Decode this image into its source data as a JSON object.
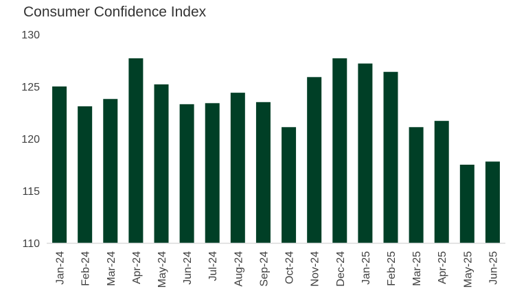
{
  "chart_data": {
    "type": "bar",
    "title": "Consumer Confidence Index",
    "xlabel": "",
    "ylabel": "",
    "categories": [
      "Jan-24",
      "Feb-24",
      "Mar-24",
      "Apr-24",
      "May-24",
      "Jun-24",
      "Jul-24",
      "Aug-24",
      "Sep-24",
      "Oct-24",
      "Nov-24",
      "Dec-24",
      "Jan-25",
      "Feb-25",
      "Mar-25",
      "Apr-25",
      "May-25",
      "Jun-25"
    ],
    "values": [
      125.0,
      123.1,
      123.8,
      127.7,
      125.2,
      123.3,
      123.4,
      124.4,
      123.5,
      121.1,
      125.9,
      127.7,
      127.2,
      126.4,
      121.1,
      121.7,
      117.5,
      117.8
    ],
    "ylim": [
      110,
      130
    ],
    "yticks": [
      "110",
      "115",
      "120",
      "125",
      "130"
    ],
    "grid": false,
    "legend": "none",
    "bar_color": "#003f26",
    "axis_color": "#d9d9d9"
  }
}
